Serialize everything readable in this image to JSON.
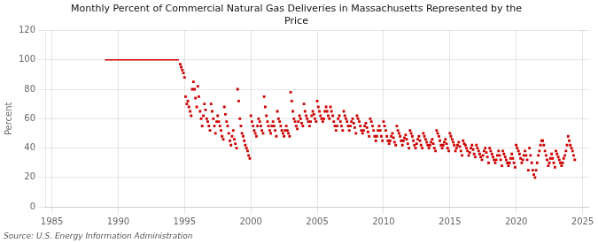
{
  "chart_data": {
    "type": "scatter",
    "title": "Monthly Percent of Commercial Natural Gas Deliveries in Massachusetts Represented by the\nPrice",
    "ylabel": "Percent",
    "annotation": "Source: U.S. Energy Information Administration",
    "xlim": [
      1984.5,
      2025.5
    ],
    "xticks": [
      1985,
      1990,
      1995,
      2000,
      2005,
      2010,
      2015,
      2020,
      2025
    ],
    "ylim": [
      0,
      120
    ],
    "yticks": [
      0,
      20,
      40,
      60,
      80,
      100,
      120
    ],
    "grid": true,
    "series": [
      {
        "type": "line",
        "color": "#CC0000",
        "x": [
          1989.0,
          1989.08,
          1989.17,
          1989.25,
          1989.33,
          1989.42,
          1989.5,
          1989.58,
          1989.67,
          1989.75,
          1989.83,
          1989.92,
          1990.0,
          1990.08,
          1990.17,
          1990.25,
          1990.33,
          1990.42,
          1990.5,
          1990.58,
          1990.67,
          1990.75,
          1990.83,
          1990.92,
          1991.0,
          1991.08,
          1991.17,
          1991.25,
          1991.33,
          1991.42,
          1991.5,
          1991.58,
          1991.67,
          1991.75,
          1991.83,
          1991.92,
          1992.0,
          1992.08,
          1992.17,
          1992.25,
          1992.33,
          1992.42,
          1992.5,
          1992.58,
          1992.67,
          1992.75,
          1992.83,
          1992.92,
          1993.0,
          1993.08,
          1993.17,
          1993.25,
          1993.33,
          1993.42,
          1993.5,
          1993.58,
          1993.67,
          1993.75,
          1993.83,
          1993.92,
          1994.0,
          1994.08,
          1994.17,
          1994.25,
          1994.33,
          1994.42,
          1994.5,
          1994.58
        ],
        "values": [
          100,
          100,
          100,
          100,
          100,
          100,
          100,
          100,
          100,
          100,
          100,
          100,
          100,
          100,
          100,
          100,
          100,
          100,
          100,
          100,
          100,
          100,
          100,
          100,
          100,
          100,
          100,
          100,
          100,
          100,
          100,
          100,
          100,
          100,
          100,
          100,
          100,
          100,
          100,
          100,
          100,
          100,
          100,
          100,
          100,
          100,
          100,
          100,
          100,
          100,
          100,
          100,
          100,
          100,
          100,
          100,
          100,
          100,
          100,
          100,
          100,
          100,
          100,
          100,
          100,
          100,
          100,
          100
        ]
      },
      {
        "type": "scatter",
        "color": "#CC0000",
        "marker": "square",
        "x": [
          1994.67,
          1994.75,
          1994.83,
          1994.92,
          1995.0,
          1995.08,
          1995.17,
          1995.25,
          1995.33,
          1995.42,
          1995.5,
          1995.58,
          1995.67,
          1995.75,
          1995.83,
          1995.92,
          1996.0,
          1996.08,
          1996.17,
          1996.25,
          1996.33,
          1996.42,
          1996.5,
          1996.58,
          1996.67,
          1996.75,
          1996.83,
          1996.92,
          1997.0,
          1997.08,
          1997.17,
          1997.25,
          1997.33,
          1997.42,
          1997.5,
          1997.58,
          1997.67,
          1997.75,
          1997.83,
          1997.92,
          1998.0,
          1998.08,
          1998.17,
          1998.25,
          1998.33,
          1998.42,
          1998.5,
          1998.58,
          1998.67,
          1998.75,
          1998.83,
          1998.92,
          1999.0,
          1999.08,
          1999.17,
          1999.25,
          1999.33,
          1999.42,
          1999.5,
          1999.58,
          1999.67,
          1999.75,
          1999.83,
          1999.92,
          2000.0,
          2000.08,
          2000.17,
          2000.25,
          2000.33,
          2000.42,
          2000.5,
          2000.58,
          2000.67,
          2000.75,
          2000.83,
          2000.92,
          2001.0,
          2001.08,
          2001.17,
          2001.25,
          2001.33,
          2001.42,
          2001.5,
          2001.58,
          2001.67,
          2001.75,
          2001.83,
          2001.92,
          2002.0,
          2002.08,
          2002.17,
          2002.25,
          2002.33,
          2002.42,
          2002.5,
          2002.58,
          2002.67,
          2002.75,
          2002.83,
          2002.92,
          2003.0,
          2003.08,
          2003.17,
          2003.25,
          2003.33,
          2003.42,
          2003.5,
          2003.58,
          2003.67,
          2003.75,
          2003.83,
          2003.92,
          2004.0,
          2004.08,
          2004.17,
          2004.25,
          2004.33,
          2004.42,
          2004.5,
          2004.58,
          2004.67,
          2004.75,
          2004.83,
          2004.92,
          2005.0,
          2005.08,
          2005.17,
          2005.25,
          2005.33,
          2005.42,
          2005.5,
          2005.58,
          2005.67,
          2005.75,
          2005.83,
          2005.92,
          2006.0,
          2006.08,
          2006.17,
          2006.25,
          2006.33,
          2006.42,
          2006.5,
          2006.58,
          2006.67,
          2006.75,
          2006.83,
          2006.92,
          2007.0,
          2007.08,
          2007.17,
          2007.25,
          2007.33,
          2007.42,
          2007.5,
          2007.58,
          2007.67,
          2007.75,
          2007.83,
          2007.92,
          2008.0,
          2008.08,
          2008.17,
          2008.25,
          2008.33,
          2008.42,
          2008.5,
          2008.58,
          2008.67,
          2008.75,
          2008.83,
          2008.92,
          2009.0,
          2009.08,
          2009.17,
          2009.25,
          2009.33,
          2009.42,
          2009.5,
          2009.58,
          2009.67,
          2009.75,
          2009.83,
          2009.92,
          2010.0,
          2010.08,
          2010.17,
          2010.25,
          2010.33,
          2010.42,
          2010.5,
          2010.58,
          2010.67,
          2010.75,
          2010.83,
          2010.92,
          2011.0,
          2011.08,
          2011.17,
          2011.25,
          2011.33,
          2011.42,
          2011.5,
          2011.58,
          2011.67,
          2011.75,
          2011.83,
          2011.92,
          2012.0,
          2012.08,
          2012.17,
          2012.25,
          2012.33,
          2012.42,
          2012.5,
          2012.58,
          2012.67,
          2012.75,
          2012.83,
          2012.92,
          2013.0,
          2013.08,
          2013.17,
          2013.25,
          2013.33,
          2013.42,
          2013.5,
          2013.58,
          2013.67,
          2013.75,
          2013.83,
          2013.92,
          2014.0,
          2014.08,
          2014.17,
          2014.25,
          2014.33,
          2014.42,
          2014.5,
          2014.58,
          2014.67,
          2014.75,
          2014.83,
          2014.92,
          2015.0,
          2015.08,
          2015.17,
          2015.25,
          2015.33,
          2015.42,
          2015.5,
          2015.58,
          2015.67,
          2015.75,
          2015.83,
          2015.92,
          2016.0,
          2016.08,
          2016.17,
          2016.25,
          2016.33,
          2016.42,
          2016.5,
          2016.58,
          2016.67,
          2016.75,
          2016.83,
          2016.92,
          2017.0,
          2017.08,
          2017.17,
          2017.25,
          2017.33,
          2017.42,
          2017.5,
          2017.58,
          2017.67,
          2017.75,
          2017.83,
          2017.92,
          2018.0,
          2018.08,
          2018.17,
          2018.25,
          2018.33,
          2018.42,
          2018.5,
          2018.58,
          2018.67,
          2018.75,
          2018.83,
          2018.92,
          2019.0,
          2019.08,
          2019.17,
          2019.25,
          2019.33,
          2019.42,
          2019.5,
          2019.58,
          2019.67,
          2019.75,
          2019.83,
          2019.92,
          2020.0,
          2020.08,
          2020.17,
          2020.25,
          2020.33,
          2020.42,
          2020.5,
          2020.58,
          2020.67,
          2020.75,
          2020.83,
          2020.92,
          2021.0,
          2021.08,
          2021.17,
          2021.25,
          2021.33,
          2021.42,
          2021.5,
          2021.58,
          2021.67,
          2021.75,
          2021.83,
          2021.92,
          2022.0,
          2022.08,
          2022.17,
          2022.25,
          2022.33,
          2022.42,
          2022.5,
          2022.58,
          2022.67,
          2022.75,
          2022.83,
          2022.92,
          2023.0,
          2023.08,
          2023.17,
          2023.25,
          2023.33,
          2023.42,
          2023.5,
          2023.58,
          2023.67,
          2023.75,
          2023.83,
          2023.92,
          2024.0,
          2024.08,
          2024.17,
          2024.25,
          2024.33,
          2024.42
        ],
        "values": [
          97,
          95,
          93,
          91,
          88,
          75,
          70,
          72,
          68,
          65,
          62,
          80,
          85,
          80,
          74,
          68,
          82,
          75,
          65,
          60,
          55,
          62,
          70,
          66,
          60,
          58,
          55,
          52,
          70,
          65,
          60,
          55,
          50,
          58,
          62,
          58,
          55,
          52,
          48,
          46,
          68,
          63,
          58,
          55,
          50,
          45,
          42,
          48,
          52,
          46,
          43,
          40,
          80,
          72,
          60,
          55,
          50,
          48,
          45,
          42,
          40,
          38,
          35,
          33,
          62,
          58,
          55,
          52,
          50,
          48,
          55,
          60,
          58,
          55,
          52,
          50,
          75,
          68,
          62,
          58,
          55,
          52,
          50,
          55,
          58,
          55,
          52,
          48,
          65,
          60,
          58,
          55,
          52,
          50,
          48,
          52,
          55,
          52,
          50,
          48,
          78,
          72,
          65,
          60,
          58,
          55,
          53,
          58,
          62,
          60,
          57,
          55,
          70,
          65,
          62,
          60,
          58,
          55,
          58,
          62,
          65,
          63,
          60,
          58,
          72,
          68,
          65,
          62,
          60,
          58,
          60,
          65,
          68,
          65,
          62,
          60,
          68,
          65,
          62,
          58,
          55,
          52,
          55,
          60,
          62,
          58,
          55,
          52,
          65,
          62,
          60,
          58,
          55,
          52,
          55,
          58,
          60,
          57,
          54,
          50,
          62,
          60,
          58,
          55,
          52,
          50,
          52,
          55,
          57,
          54,
          51,
          48,
          60,
          58,
          55,
          52,
          48,
          45,
          48,
          52,
          55,
          52,
          48,
          45,
          58,
          55,
          52,
          48,
          45,
          43,
          45,
          48,
          50,
          47,
          44,
          42,
          55,
          52,
          50,
          48,
          45,
          42,
          45,
          47,
          49,
          46,
          43,
          40,
          52,
          50,
          48,
          45,
          42,
          40,
          43,
          46,
          48,
          45,
          42,
          40,
          50,
          48,
          46,
          44,
          42,
          40,
          42,
          44,
          46,
          43,
          40,
          38,
          52,
          50,
          48,
          45,
          42,
          40,
          42,
          44,
          46,
          43,
          40,
          38,
          50,
          48,
          46,
          44,
          42,
          38,
          40,
          42,
          44,
          41,
          38,
          35,
          45,
          43,
          42,
          40,
          38,
          35,
          37,
          40,
          42,
          39,
          36,
          34,
          42,
          40,
          38,
          36,
          34,
          32,
          35,
          38,
          40,
          37,
          34,
          30,
          40,
          38,
          36,
          34,
          32,
          30,
          32,
          35,
          38,
          35,
          32,
          28,
          38,
          36,
          34,
          32,
          30,
          28,
          30,
          33,
          36,
          33,
          30,
          27,
          42,
          40,
          38,
          36,
          33,
          30,
          32,
          35,
          38,
          35,
          32,
          25,
          40,
          35,
          30,
          25,
          22,
          20,
          25,
          30,
          35,
          38,
          42,
          45,
          45,
          42,
          38,
          35,
          32,
          28,
          30,
          33,
          36,
          33,
          30,
          27,
          38,
          36,
          34,
          32,
          30,
          28,
          30,
          33,
          35,
          38,
          42,
          48,
          45,
          42,
          40,
          38,
          35,
          32
        ]
      }
    ]
  }
}
